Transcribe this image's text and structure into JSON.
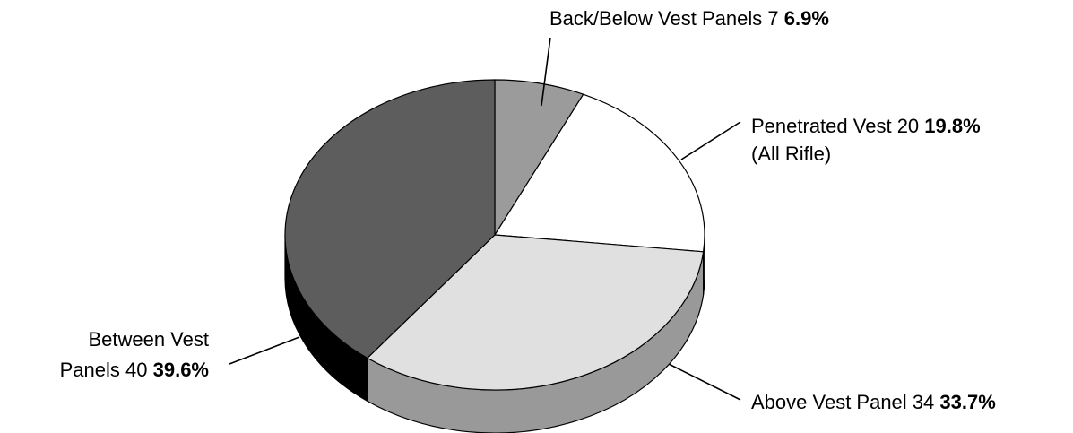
{
  "chart_data": {
    "type": "pie",
    "style": "3d",
    "legend": "none",
    "slices": [
      {
        "label": "Back/Below Vest Panels",
        "value": 7,
        "percent": "6.9%",
        "color": "#9b9b9b",
        "side_color": "#6f6f6f"
      },
      {
        "label": "Penetrated Vest",
        "note": "(All Rifle)",
        "value": 20,
        "percent": "19.8%",
        "color": "#ffffff",
        "side_color": "#d0d0d0"
      },
      {
        "label": "Above Vest Panel",
        "value": 34,
        "percent": "33.7%",
        "color": "#e0e0e0",
        "side_color": "#999999"
      },
      {
        "label_line1": "Between Vest",
        "label_line2": "Panels",
        "value": 40,
        "percent": "39.6%",
        "color": "#5d5d5d",
        "side_color": "#000000"
      }
    ]
  }
}
